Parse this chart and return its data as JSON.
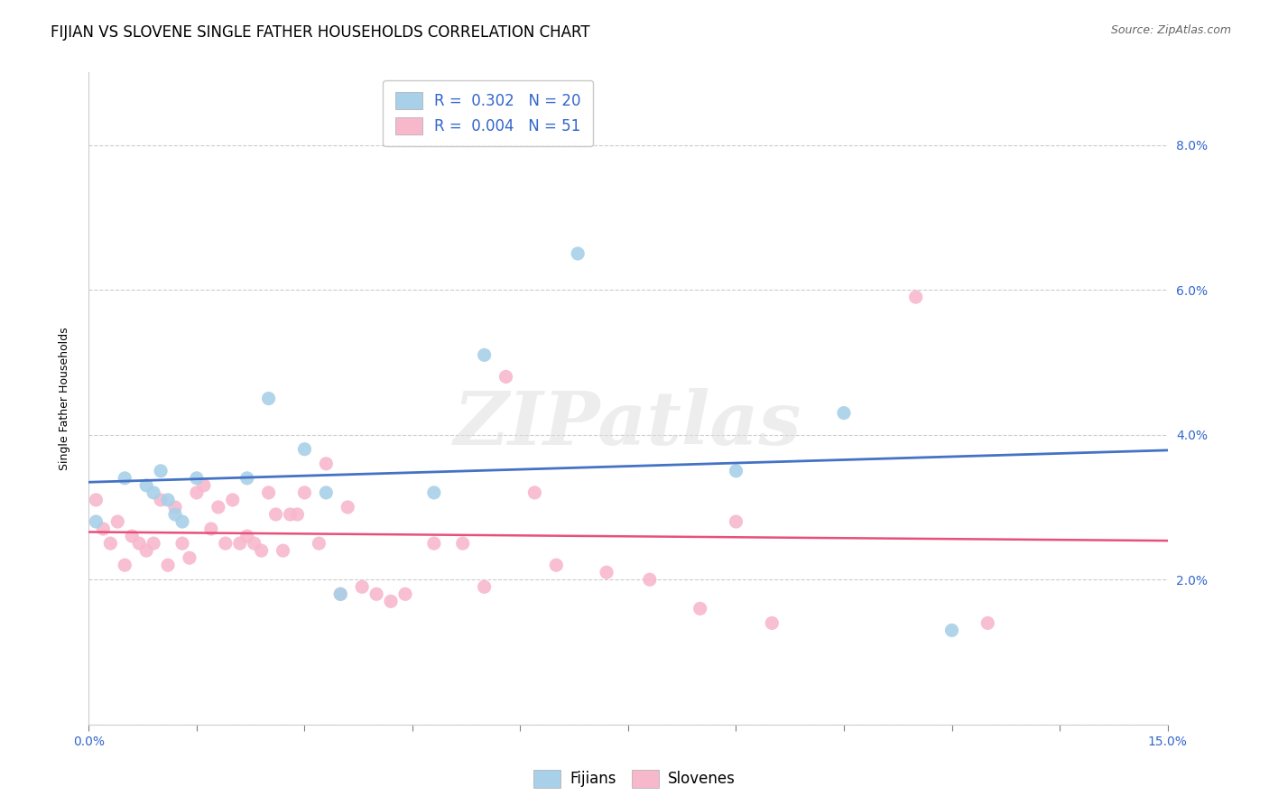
{
  "title": "FIJIAN VS SLOVENE SINGLE FATHER HOUSEHOLDS CORRELATION CHART",
  "source": "Source: ZipAtlas.com",
  "ylabel_label": "Single Father Households",
  "xlim": [
    0.0,
    0.15
  ],
  "ylim": [
    0.0,
    0.09
  ],
  "xticks": [
    0.0,
    0.015,
    0.03,
    0.045,
    0.06,
    0.075,
    0.09,
    0.105,
    0.12,
    0.135,
    0.15
  ],
  "yticks": [
    0.0,
    0.02,
    0.04,
    0.06,
    0.08
  ],
  "fijian_x": [
    0.001,
    0.005,
    0.008,
    0.009,
    0.01,
    0.011,
    0.012,
    0.013,
    0.015,
    0.022,
    0.025,
    0.03,
    0.033,
    0.035,
    0.048,
    0.055,
    0.068,
    0.09,
    0.105,
    0.12
  ],
  "fijian_y": [
    0.028,
    0.034,
    0.033,
    0.032,
    0.035,
    0.031,
    0.029,
    0.028,
    0.034,
    0.034,
    0.045,
    0.038,
    0.032,
    0.018,
    0.032,
    0.051,
    0.065,
    0.035,
    0.043,
    0.013
  ],
  "slovene_x": [
    0.001,
    0.002,
    0.003,
    0.004,
    0.005,
    0.006,
    0.007,
    0.008,
    0.009,
    0.01,
    0.011,
    0.012,
    0.013,
    0.014,
    0.015,
    0.016,
    0.017,
    0.018,
    0.019,
    0.02,
    0.021,
    0.022,
    0.023,
    0.024,
    0.025,
    0.026,
    0.027,
    0.028,
    0.029,
    0.03,
    0.032,
    0.033,
    0.035,
    0.036,
    0.038,
    0.04,
    0.042,
    0.044,
    0.048,
    0.052,
    0.055,
    0.058,
    0.062,
    0.065,
    0.072,
    0.078,
    0.085,
    0.09,
    0.095,
    0.115,
    0.125
  ],
  "slovene_y": [
    0.031,
    0.027,
    0.025,
    0.028,
    0.022,
    0.026,
    0.025,
    0.024,
    0.025,
    0.031,
    0.022,
    0.03,
    0.025,
    0.023,
    0.032,
    0.033,
    0.027,
    0.03,
    0.025,
    0.031,
    0.025,
    0.026,
    0.025,
    0.024,
    0.032,
    0.029,
    0.024,
    0.029,
    0.029,
    0.032,
    0.025,
    0.036,
    0.018,
    0.03,
    0.019,
    0.018,
    0.017,
    0.018,
    0.025,
    0.025,
    0.019,
    0.048,
    0.032,
    0.022,
    0.021,
    0.02,
    0.016,
    0.028,
    0.014,
    0.059,
    0.014
  ],
  "fijian_color": "#a8d0e8",
  "slovene_color": "#f7b8cc",
  "fijian_line_color": "#4472c4",
  "slovene_line_color": "#e8507a",
  "fijian_R": "0.302",
  "fijian_N": "20",
  "slovene_R": "0.004",
  "slovene_N": "51",
  "legend_fijian_label": "Fijians",
  "legend_slovene_label": "Slovenes",
  "watermark": "ZIPatlas",
  "background_color": "#ffffff",
  "grid_color": "#cccccc",
  "title_fontsize": 12,
  "axis_label_fontsize": 9,
  "tick_fontsize": 10,
  "legend_fontsize": 12
}
